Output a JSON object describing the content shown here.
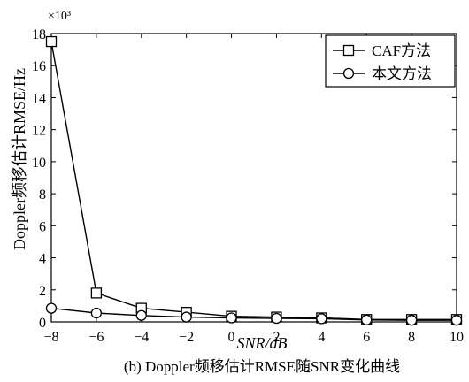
{
  "figure": {
    "caption": "(b) Doppler频移估计RMSE随SNR变化曲线"
  },
  "chart_data": {
    "type": "line",
    "xlabel": "SNR/dB",
    "ylabel": "Doppler频移估计RMSE/Hz",
    "y_multiplier": "×10³",
    "xlim": [
      -8,
      10
    ],
    "ylim": [
      0,
      18
    ],
    "x_ticks": [
      -8,
      -6,
      -4,
      -2,
      0,
      2,
      4,
      6,
      8,
      10
    ],
    "y_ticks": [
      0,
      2,
      4,
      6,
      8,
      10,
      12,
      14,
      16,
      18
    ],
    "grid": false,
    "legend_position": "top-right",
    "x": [
      -8,
      -6,
      -4,
      -2,
      0,
      2,
      4,
      6,
      8,
      10
    ],
    "series": [
      {
        "name": "CAF方法",
        "marker": "square",
        "values": [
          17.5,
          1.8,
          0.85,
          0.6,
          0.35,
          0.3,
          0.25,
          0.15,
          0.15,
          0.15
        ]
      },
      {
        "name": "本文方法",
        "marker": "circle",
        "values": [
          0.85,
          0.55,
          0.4,
          0.3,
          0.25,
          0.22,
          0.2,
          0.12,
          0.1,
          0.1
        ]
      }
    ]
  }
}
